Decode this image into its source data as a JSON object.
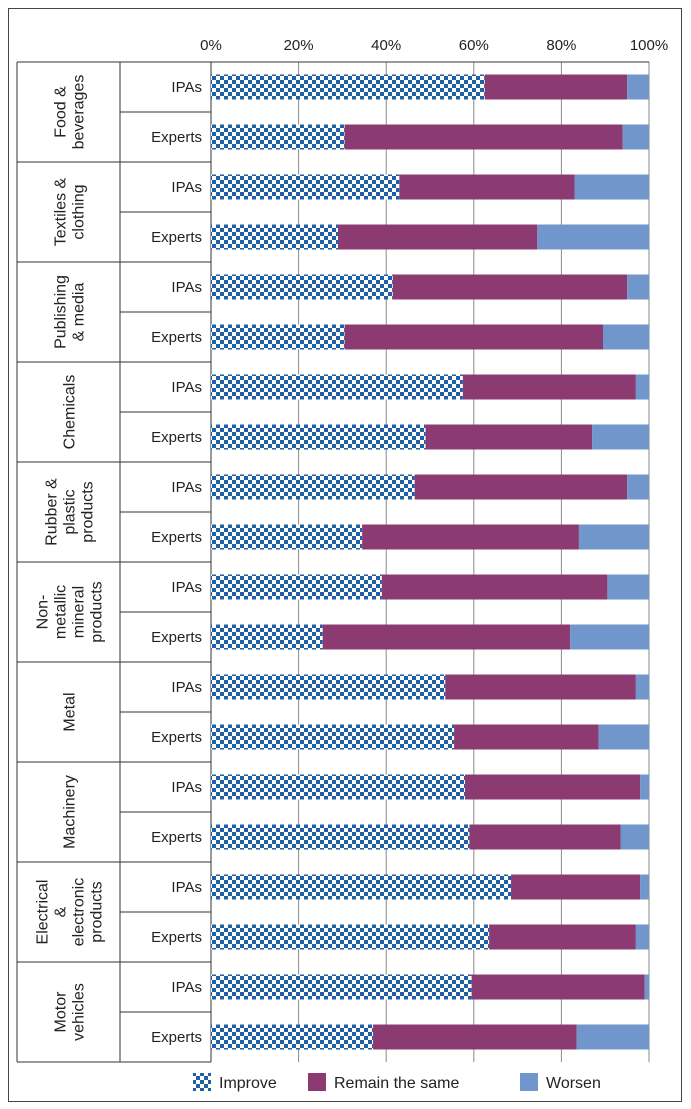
{
  "chart_data": {
    "type": "bar",
    "orientation": "horizontal",
    "stacked": "percent",
    "xlim": [
      0,
      100
    ],
    "x_ticks": [
      "0%",
      "20%",
      "40%",
      "60%",
      "80%",
      "100%"
    ],
    "grid": true,
    "legend_position": "bottom",
    "colors": {
      "improve": "#1f5fa6",
      "improve_bg": "#ffffff",
      "remain": "#8c3a72",
      "worsen": "#7096cc"
    },
    "series_names": [
      "Improve",
      "Remain the same",
      "Worsen"
    ],
    "groups": [
      {
        "label": [
          "Food &",
          "beverages"
        ],
        "rows": [
          {
            "label": "IPAs",
            "values": [
              62.5,
              32.5,
              5.0
            ]
          },
          {
            "label": "Experts",
            "values": [
              30.5,
              63.5,
              6.0
            ]
          }
        ]
      },
      {
        "label": [
          "Textiles &",
          "clothing"
        ],
        "rows": [
          {
            "label": "IPAs",
            "values": [
              43.0,
              40.0,
              17.0
            ]
          },
          {
            "label": "Experts",
            "values": [
              29.0,
              45.5,
              25.5
            ]
          }
        ]
      },
      {
        "label": [
          "Publishing",
          "& media"
        ],
        "rows": [
          {
            "label": "IPAs",
            "values": [
              41.5,
              53.5,
              5.0
            ]
          },
          {
            "label": "Experts",
            "values": [
              30.5,
              59.0,
              10.5
            ]
          }
        ]
      },
      {
        "label": [
          "Chemicals"
        ],
        "rows": [
          {
            "label": "IPAs",
            "values": [
              57.5,
              39.5,
              3.0
            ]
          },
          {
            "label": "Experts",
            "values": [
              49.0,
              38.0,
              13.0
            ]
          }
        ]
      },
      {
        "label": [
          "Rubber &",
          "plastic",
          "products"
        ],
        "rows": [
          {
            "label": "IPAs",
            "values": [
              46.5,
              48.5,
              5.0
            ]
          },
          {
            "label": "Experts",
            "values": [
              34.5,
              49.5,
              16.0
            ]
          }
        ]
      },
      {
        "label": [
          "Non-",
          "metallic",
          "mineral",
          "products"
        ],
        "rows": [
          {
            "label": "IPAs",
            "values": [
              39.0,
              51.5,
              9.5
            ]
          },
          {
            "label": "Experts",
            "values": [
              25.5,
              56.5,
              18.0
            ]
          }
        ]
      },
      {
        "label": [
          "Metal"
        ],
        "rows": [
          {
            "label": "IPAs",
            "values": [
              53.5,
              43.5,
              3.0
            ]
          },
          {
            "label": "Experts",
            "values": [
              55.5,
              33.0,
              11.5
            ]
          }
        ]
      },
      {
        "label": [
          "Machinery"
        ],
        "rows": [
          {
            "label": "IPAs",
            "values": [
              58.0,
              40.0,
              2.0
            ]
          },
          {
            "label": "Experts",
            "values": [
              59.0,
              34.5,
              6.5
            ]
          }
        ]
      },
      {
        "label": [
          "Electrical",
          "&",
          "electronic",
          "products"
        ],
        "rows": [
          {
            "label": "IPAs",
            "values": [
              68.5,
              29.5,
              2.0
            ]
          },
          {
            "label": "Experts",
            "values": [
              63.5,
              33.5,
              3.0
            ]
          }
        ]
      },
      {
        "label": [
          "Motor",
          "vehicles"
        ],
        "rows": [
          {
            "label": "IPAs",
            "values": [
              59.5,
              39.5,
              1.0
            ]
          },
          {
            "label": "Experts",
            "values": [
              37.0,
              46.5,
              16.5
            ]
          }
        ]
      }
    ]
  }
}
